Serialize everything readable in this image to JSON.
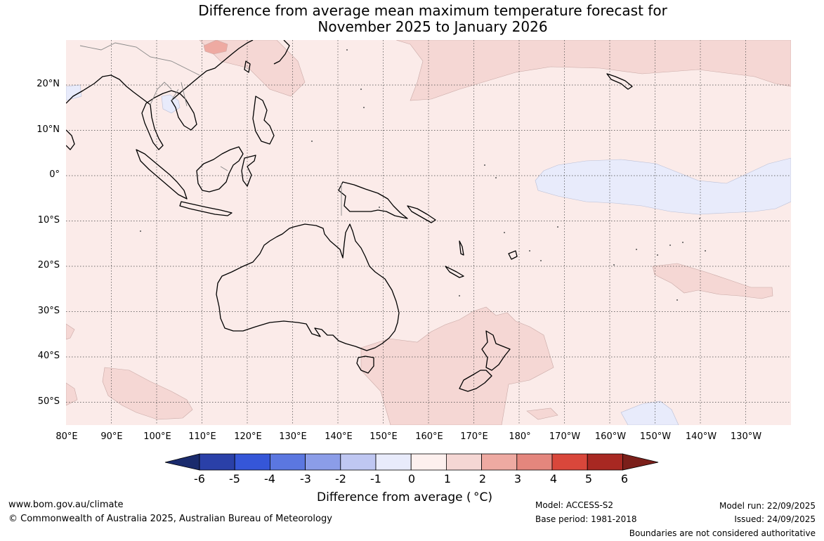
{
  "title": {
    "line1": "Difference from average mean maximum temperature forecast for",
    "line2": "November 2025 to January 2026"
  },
  "map": {
    "latitude_labels": [
      "20°N",
      "10°N",
      "0°",
      "10°S",
      "20°S",
      "30°S",
      "40°S",
      "50°S"
    ],
    "longitude_labels": [
      "80°E",
      "90°E",
      "100°E",
      "110°E",
      "120°E",
      "130°E",
      "140°E",
      "150°E",
      "160°E",
      "170°E",
      "180°",
      "170°W",
      "160°W",
      "150°W",
      "140°W",
      "130°W"
    ],
    "graticule": "dotted",
    "anomaly_field": "0 to 1 °C above average across most of the domain; 1 to 2 °C above average over the North Pacific, the Tasman Sea south-east of Australia, the South Pacific near 25°S 150°W and the southern Indian Ocean; -1 to 0 °C over the central equatorial Pacific and the Gulf of Thailand"
  },
  "colorbar": {
    "title": "Difference from average ( °C)",
    "tick_labels": [
      "-6",
      "-5",
      "-4",
      "-3",
      "-2",
      "-1",
      "0",
      "1",
      "2",
      "3",
      "4",
      "5",
      "6"
    ],
    "colors": [
      "#1a2b6d",
      "#2a40a8",
      "#3556d8",
      "#5b77e0",
      "#8b9de8",
      "#bfc7f2",
      "#e8ebfb",
      "#fdf0ee",
      "#f5d7d4",
      "#eeaaa2",
      "#e4867d",
      "#d9473b",
      "#a82822",
      "#7b1f1a"
    ]
  },
  "footer": {
    "website": "www.bom.gov.au/climate",
    "copyright": "© Commonwealth of Australia 2025, Australian Bureau of Meteorology",
    "model": "Model: ACCESS-S2",
    "base_period": "Base period: 1981-2018",
    "model_run": "Model run: 22/09/2025",
    "issued": "Issued: 24/09/2025",
    "disclaimer": "Boundaries are not considered authoritative"
  }
}
